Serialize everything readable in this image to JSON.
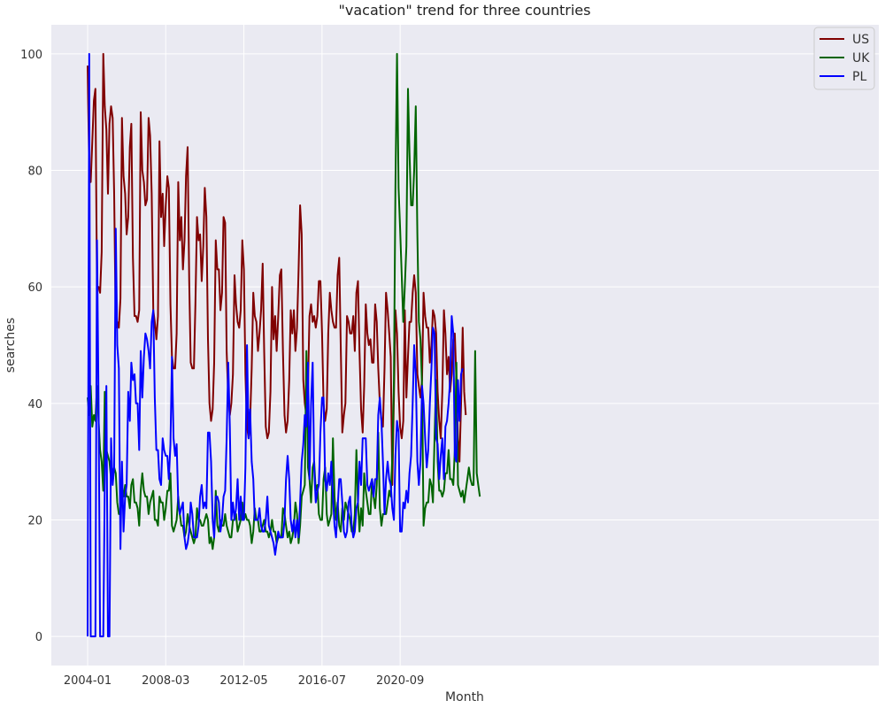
{
  "chart_data": {
    "type": "line",
    "title": "\"vacation\" trend for three countries",
    "xlabel": "Month",
    "ylabel": "searches",
    "x_start": "2004-01",
    "x_ticks": [
      "2004-01",
      "2008-03",
      "2012-05",
      "2016-07",
      "2020-09"
    ],
    "y_ticks": [
      "0",
      "20",
      "40",
      "60",
      "80",
      "100"
    ],
    "ylim": [
      -5,
      105
    ],
    "grid": true,
    "legend_position": "top-right",
    "series": [
      {
        "name": "US",
        "color": "#800000",
        "values": [
          98,
          80,
          78,
          85,
          92,
          94,
          60,
          60,
          59,
          66,
          100,
          91,
          87,
          76,
          88,
          91,
          89,
          76,
          53,
          54,
          53,
          58,
          89,
          79,
          76,
          69,
          72,
          84,
          88,
          65,
          55,
          55,
          54,
          56,
          90,
          80,
          78,
          74,
          75,
          89,
          86,
          76,
          56,
          54,
          51,
          55,
          85,
          72,
          76,
          67,
          74,
          79,
          77,
          57,
          48,
          46,
          46,
          52,
          78,
          68,
          72,
          63,
          68,
          79,
          84,
          61,
          47,
          46,
          46,
          57,
          72,
          68,
          69,
          61,
          67,
          77,
          72,
          51,
          40,
          37,
          39,
          47,
          68,
          63,
          63,
          56,
          59,
          72,
          71,
          49,
          41,
          38,
          40,
          45,
          62,
          57,
          54,
          53,
          56,
          68,
          63,
          45,
          36,
          34,
          37,
          46,
          59,
          55,
          54,
          49,
          52,
          56,
          64,
          49,
          36,
          34,
          35,
          42,
          60,
          51,
          55,
          49,
          55,
          62,
          63,
          49,
          38,
          35,
          37,
          44,
          56,
          52,
          56,
          49,
          53,
          63,
          74,
          69,
          44,
          40,
          38,
          43,
          55,
          57,
          54,
          55,
          53,
          55,
          61,
          61,
          52,
          40,
          37,
          39,
          52,
          59,
          56,
          54,
          53,
          53,
          62,
          65,
          50,
          35,
          38,
          40,
          55,
          54,
          52,
          52,
          55,
          49,
          59,
          61,
          49,
          39,
          35,
          43,
          57,
          52,
          50,
          51,
          47,
          47,
          57,
          54,
          46,
          40,
          37,
          36,
          46,
          59,
          56,
          52,
          48,
          26,
          41,
          56,
          52,
          42,
          36,
          34,
          37,
          56,
          41,
          48,
          54,
          54,
          59,
          62,
          59,
          45,
          43,
          41,
          44,
          59,
          55,
          53,
          53,
          47,
          50,
          56,
          55,
          52,
          42,
          37,
          34,
          42,
          56,
          52,
          45,
          48,
          42,
          45,
          51,
          52,
          44,
          34,
          30,
          40,
          53,
          42,
          38
        ]
      },
      {
        "name": "UK",
        "color": "#006400",
        "values": [
          41,
          38,
          43,
          36,
          38,
          37,
          43,
          37,
          32,
          30,
          25,
          42,
          32,
          31,
          30,
          27,
          28,
          29,
          28,
          23,
          21,
          21,
          25,
          24,
          26,
          24,
          24,
          22,
          26,
          27,
          23,
          23,
          22,
          19,
          25,
          28,
          25,
          24,
          24,
          21,
          23,
          24,
          25,
          20,
          20,
          19,
          24,
          23,
          23,
          20,
          22,
          25,
          25,
          28,
          19,
          18,
          19,
          20,
          24,
          21,
          19,
          19,
          17,
          18,
          21,
          19,
          18,
          17,
          16,
          17,
          22,
          20,
          20,
          19,
          19,
          20,
          21,
          20,
          16,
          17,
          15,
          17,
          25,
          19,
          18,
          20,
          19,
          19,
          21,
          19,
          18,
          17,
          17,
          20,
          20,
          21,
          18,
          19,
          20,
          23,
          20,
          21,
          20,
          20,
          19,
          16,
          18,
          22,
          20,
          20,
          18,
          18,
          19,
          20,
          18,
          18,
          17,
          18,
          20,
          18,
          18,
          16,
          17,
          17,
          17,
          22,
          21,
          19,
          17,
          18,
          16,
          17,
          19,
          23,
          21,
          16,
          19,
          24,
          25,
          26,
          49,
          29,
          27,
          23,
          29,
          30,
          25,
          26,
          21,
          20,
          20,
          27,
          29,
          21,
          19,
          20,
          21,
          34,
          24,
          20,
          23,
          19,
          18,
          22,
          20,
          23,
          22,
          21,
          20,
          18,
          18,
          21,
          32,
          23,
          18,
          22,
          19,
          28,
          25,
          23,
          21,
          21,
          27,
          24,
          22,
          26,
          35,
          22,
          19,
          21,
          21,
          21,
          23,
          25,
          24,
          31,
          44,
          77,
          100,
          77,
          70,
          62,
          54,
          60,
          67,
          94,
          83,
          74,
          74,
          80,
          91,
          69,
          54,
          51,
          43,
          19,
          22,
          23,
          23,
          27,
          26,
          23,
          34,
          44,
          30,
          25,
          25,
          24,
          25,
          28,
          28,
          32,
          27,
          27,
          26,
          32,
          47,
          26,
          25,
          24,
          25,
          23,
          25,
          27,
          29,
          27,
          26,
          26,
          49,
          28,
          26,
          24
        ]
      },
      {
        "name": "PL",
        "color": "#0000ff",
        "values": [
          0,
          100,
          0,
          0,
          0,
          0,
          68,
          40,
          0,
          0,
          0,
          26,
          43,
          0,
          0,
          34,
          26,
          29,
          70,
          50,
          46,
          15,
          30,
          18,
          24,
          26,
          42,
          37,
          47,
          44,
          45,
          40,
          40,
          32,
          49,
          41,
          48,
          52,
          51,
          49,
          46,
          54,
          56,
          41,
          32,
          32,
          27,
          26,
          34,
          32,
          31,
          31,
          27,
          33,
          48,
          34,
          31,
          33,
          23,
          21,
          22,
          23,
          17,
          15,
          16,
          18,
          23,
          21,
          17,
          17,
          17,
          19,
          24,
          26,
          22,
          23,
          22,
          35,
          35,
          30,
          20,
          17,
          24,
          24,
          23,
          18,
          20,
          24,
          25,
          34,
          47,
          36,
          20,
          23,
          20,
          22,
          27,
          20,
          24,
          20,
          20,
          29,
          50,
          34,
          39,
          30,
          27,
          20,
          20,
          20,
          22,
          19,
          18,
          18,
          20,
          24,
          19,
          18,
          17,
          16,
          14,
          16,
          18,
          17,
          17,
          17,
          20,
          27,
          31,
          27,
          20,
          18,
          20,
          17,
          20,
          17,
          23,
          30,
          33,
          38,
          36,
          47,
          27,
          40,
          47,
          29,
          23,
          25,
          26,
          35,
          41,
          41,
          27,
          25,
          28,
          26,
          30,
          24,
          19,
          17,
          22,
          27,
          27,
          23,
          18,
          17,
          18,
          23,
          24,
          19,
          17,
          18,
          22,
          23,
          30,
          26,
          34,
          34,
          34,
          26,
          25,
          26,
          27,
          24,
          27,
          27,
          38,
          41,
          37,
          30,
          21,
          27,
          30,
          27,
          26,
          22,
          20,
          31,
          37,
          35,
          18,
          18,
          23,
          22,
          25,
          23,
          28,
          31,
          40,
          50,
          45,
          30,
          26,
          30,
          43,
          40,
          34,
          29,
          32,
          40,
          46,
          53,
          52,
          34,
          33,
          27,
          31,
          34,
          27,
          36,
          37,
          40,
          44,
          55,
          52,
          31,
          30,
          44,
          37,
          45,
          46
        ]
      }
    ]
  }
}
